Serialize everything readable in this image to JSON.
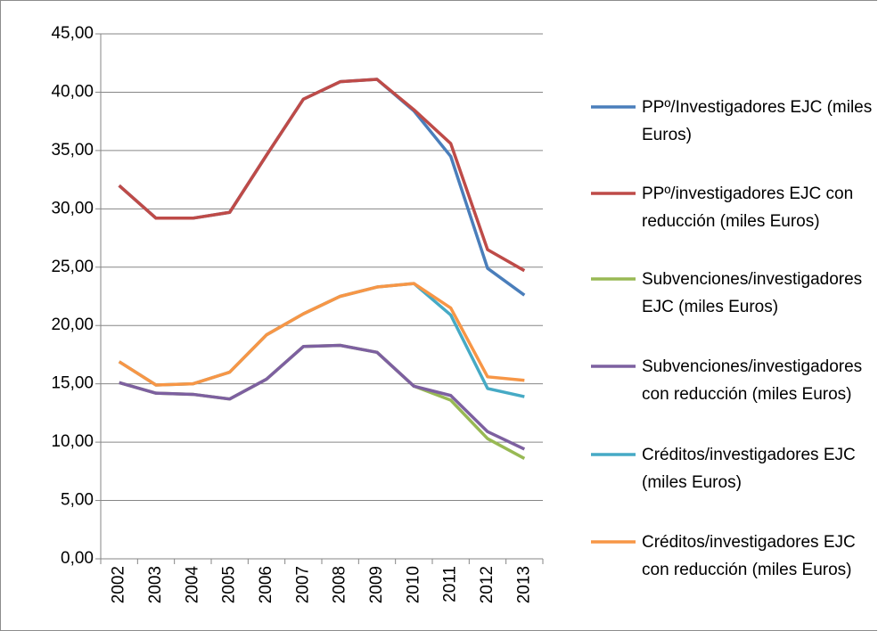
{
  "chart_data": {
    "type": "line",
    "x": [
      "2002",
      "2003",
      "2004",
      "2005",
      "2006",
      "2007",
      "2008",
      "2009",
      "2010",
      "2011",
      "2012",
      "2013"
    ],
    "series": [
      {
        "name": "PPº/Investigadores EJC (miles  Euros)",
        "color": "#4a7ebb",
        "values": [
          32.0,
          29.2,
          29.2,
          29.7,
          34.6,
          39.4,
          40.9,
          41.1,
          38.4,
          34.5,
          24.9,
          22.6
        ]
      },
      {
        "name": "PPº/investigadores EJC con reducción (miles Euros)",
        "color": "#be4b48",
        "values": [
          32.0,
          29.2,
          29.2,
          29.7,
          34.6,
          39.4,
          40.9,
          41.1,
          38.5,
          35.6,
          26.5,
          24.7
        ]
      },
      {
        "name": "Subvenciones/investigadores EJC (miles Euros)",
        "color": "#98b954",
        "values": [
          15.1,
          14.2,
          14.1,
          13.7,
          15.4,
          18.2,
          18.3,
          17.7,
          14.8,
          13.6,
          10.3,
          8.6
        ]
      },
      {
        "name": "Subvenciones/investigadores con reducción (miles Euros)",
        "color": "#7d60a0",
        "values": [
          15.1,
          14.2,
          14.1,
          13.7,
          15.4,
          18.2,
          18.3,
          17.7,
          14.8,
          14.0,
          10.9,
          9.4
        ]
      },
      {
        "name": "Créditos/investigadores EJC (miles Euros)",
        "color": "#46aac5",
        "values": [
          16.9,
          14.9,
          15.0,
          16.0,
          19.2,
          21.0,
          22.5,
          23.3,
          23.6,
          20.9,
          14.6,
          13.9
        ]
      },
      {
        "name": "Créditos/investigadores EJC con reducción (miles Euros)",
        "color": "#f79646",
        "values": [
          16.9,
          14.9,
          15.0,
          16.0,
          19.2,
          21.0,
          22.5,
          23.3,
          23.6,
          21.5,
          15.6,
          15.3
        ]
      }
    ],
    "ylim": [
      0,
      45
    ],
    "yticks": [
      {
        "value": 0,
        "label": "0,00"
      },
      {
        "value": 5,
        "label": "5,00"
      },
      {
        "value": 10,
        "label": "10,00"
      },
      {
        "value": 15,
        "label": "15,00"
      },
      {
        "value": 20,
        "label": "20,00"
      },
      {
        "value": 25,
        "label": "25,00"
      },
      {
        "value": 30,
        "label": "30,00"
      },
      {
        "value": 35,
        "label": "35,00"
      },
      {
        "value": 40,
        "label": "40,00"
      },
      {
        "value": 45,
        "label": "45,00"
      }
    ],
    "grid": true,
    "legend": "right"
  }
}
